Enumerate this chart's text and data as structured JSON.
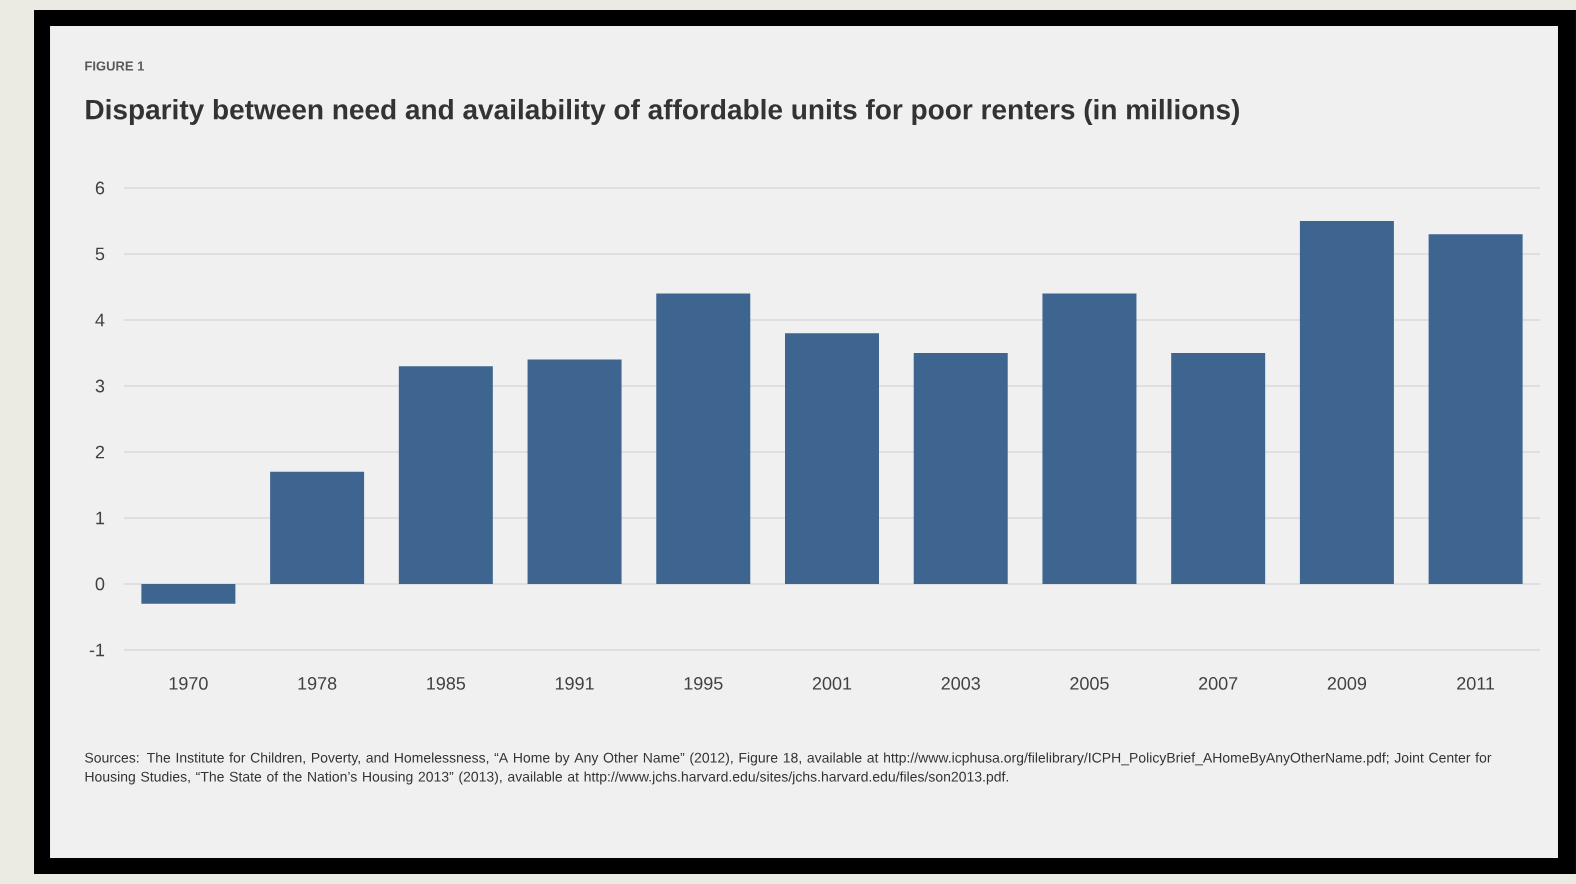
{
  "chart_data": {
    "type": "bar",
    "title": "Disparity between need and availability of affordable units for poor renters (in millions)",
    "categories": [
      "1970",
      "1978",
      "1985",
      "1991",
      "1995",
      "2001",
      "2003",
      "2005",
      "2007",
      "2009",
      "2011"
    ],
    "values": [
      -0.3,
      1.7,
      3.3,
      3.4,
      4.4,
      3.8,
      3.5,
      4.4,
      3.5,
      5.5,
      5.3
    ],
    "color": "#3d6590",
    "ylim": [
      -1,
      6
    ],
    "yticks": [
      -1,
      0,
      1,
      2,
      3,
      4,
      5,
      6
    ],
    "grid": "y",
    "annotations": [
      "FIGURE 1",
      "Sources: The Institute for Children, Poverty, and Homelessness, “A Home by Any Other Name” (2012), Figure 18, available at http://www.icphusa.org/filelibrary/ICPH_PolicyBrief_AHomeByAnyOtherName.pdf; Joint Center for Housing Studies, “The State of the Nation’s Housing 2013” (2013), available at http://www.jchs.harvard.edu/sites/jchs.harvard.edu/files/son2013.pdf."
    ]
  }
}
